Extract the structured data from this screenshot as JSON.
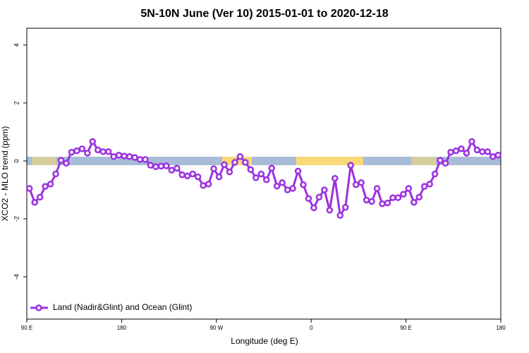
{
  "chart_data": {
    "type": "line",
    "title": "5N-10N June (Ver 10)   2015-01-01 to 2020-12-18",
    "x_label": "Longitude (deg E)",
    "y_label": "XCO2 - MLO trend (ppm)",
    "xlim": [
      90,
      540
    ],
    "xticks": [
      {
        "value": 90,
        "label": "90 E"
      },
      180,
      {
        "value": 270,
        "label": "90 W"
      },
      {
        "value": 360,
        "label": "0"
      },
      {
        "value": 450,
        "label": "90 E"
      },
      180
    ],
    "ylim": [
      -5.46,
      4.58
    ],
    "yticks": [
      -4,
      -2,
      0,
      2,
      4
    ],
    "legend": "bottom-left",
    "series": [
      {
        "name": "Land (Nadir&Glint) and Ocean (Glint)",
        "color": "#9b30e0",
        "x": [
          92.5,
          97.5,
          102.5,
          107.5,
          112.5,
          117.5,
          122.5,
          127.5,
          132.5,
          137.5,
          142.5,
          147.5,
          152.5,
          157.5,
          162.5,
          167.5,
          172.5,
          177.5,
          182.5,
          187.5,
          192.5,
          197.5,
          202.5,
          207.5,
          212.5,
          217.5,
          222.5,
          227.5,
          232.5,
          237.5,
          242.5,
          247.5,
          252.5,
          257.5,
          262.5,
          267.5,
          272.5,
          277.5,
          282.5,
          287.5,
          292.5,
          297.5,
          302.5,
          307.5,
          312.5,
          317.5,
          322.5,
          327.5,
          332.5,
          337.5,
          342.5,
          347.5,
          352.5,
          357.5,
          362.5,
          367.5,
          372.5,
          377.5,
          382.5,
          387.5,
          392.5,
          397.5,
          402.5,
          407.5,
          412.5,
          417.5,
          422.5,
          427.5,
          432.5,
          437.5,
          442.5,
          447.5,
          452.5,
          457.5,
          462.5,
          467.5,
          472.5,
          477.5,
          482.5,
          487.5,
          492.5,
          497.5,
          502.5,
          507.5,
          512.5,
          517.5,
          522.5,
          527.5,
          532.5,
          537.5
        ],
        "values": [
          -0.95,
          -1.43,
          -1.25,
          -0.88,
          -0.8,
          -0.45,
          0.02,
          -0.08,
          0.3,
          0.35,
          0.42,
          0.27,
          0.67,
          0.38,
          0.32,
          0.32,
          0.15,
          0.2,
          0.17,
          0.15,
          0.12,
          0.05,
          0.05,
          -0.15,
          -0.2,
          -0.18,
          -0.17,
          -0.32,
          -0.25,
          -0.48,
          -0.52,
          -0.45,
          -0.55,
          -0.85,
          -0.8,
          -0.27,
          -0.55,
          -0.13,
          -0.38,
          -0.05,
          0.15,
          -0.05,
          -0.3,
          -0.58,
          -0.45,
          -0.65,
          -0.25,
          -0.87,
          -0.75,
          -1.0,
          -0.95,
          -0.35,
          -0.82,
          -1.3,
          -1.62,
          -1.25,
          -1.0,
          -1.7,
          -0.6,
          -1.88,
          -1.6,
          -0.15,
          -0.82,
          -0.75,
          -1.35,
          -1.4,
          -0.95,
          -1.48,
          -1.45,
          -1.27,
          -1.27,
          -1.15,
          -0.95,
          -1.43,
          -1.25,
          -0.88,
          -0.8,
          -0.45,
          0.02,
          -0.08,
          0.3,
          0.35,
          0.42,
          0.27,
          0.67,
          0.38,
          0.32,
          0.32,
          0.15,
          0.2
        ]
      }
    ]
  }
}
